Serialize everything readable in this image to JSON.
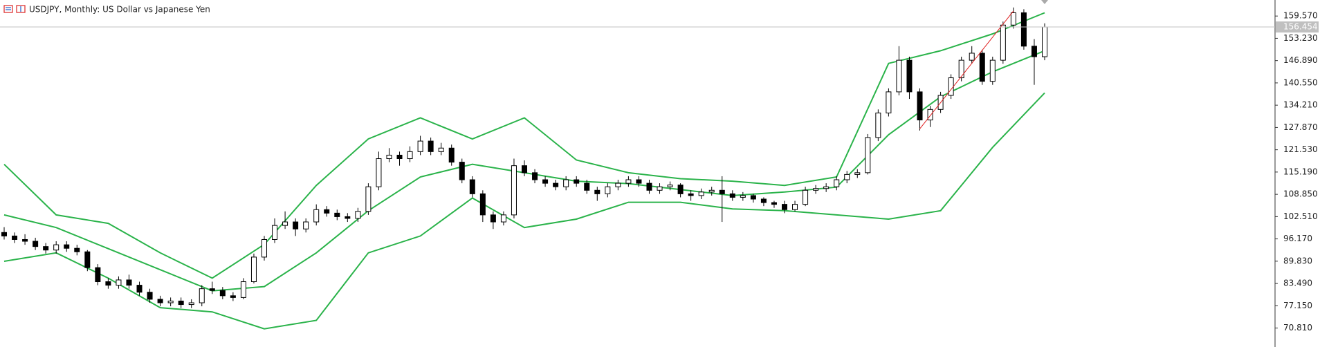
{
  "chart_data": {
    "type": "candlestick",
    "title": "USDJPY, Monthly:  US Dollar vs Japanese Yen",
    "ylim": [
      65.42,
      164.13
    ],
    "yticks": [
      {
        "value": 159.57,
        "label": "159.570"
      },
      {
        "value": 153.23,
        "label": "153.230"
      },
      {
        "value": 146.89,
        "label": "146.890"
      },
      {
        "value": 140.55,
        "label": "140.550"
      },
      {
        "value": 134.21,
        "label": "134.210"
      },
      {
        "value": 127.87,
        "label": "127.870"
      },
      {
        "value": 121.53,
        "label": "121.530"
      },
      {
        "value": 115.19,
        "label": "115.190"
      },
      {
        "value": 108.85,
        "label": "108.850"
      },
      {
        "value": 102.51,
        "label": "102.510"
      },
      {
        "value": 96.17,
        "label": "96.170"
      },
      {
        "value": 89.83,
        "label": "89.830"
      },
      {
        "value": 83.49,
        "label": "83.490"
      },
      {
        "value": 77.15,
        "label": "77.150"
      },
      {
        "value": 70.81,
        "label": "70.810"
      }
    ],
    "last_price": 156.454,
    "candles": [
      [
        98,
        99.5,
        96,
        97
      ],
      [
        97,
        98,
        95,
        96
      ],
      [
        96,
        97.5,
        94.5,
        95.5
      ],
      [
        95.5,
        96.5,
        93,
        94
      ],
      [
        94,
        95,
        92,
        93
      ],
      [
        93,
        95.5,
        92,
        94.5
      ],
      [
        94.5,
        95.5,
        92.5,
        93.5
      ],
      [
        93.5,
        94.5,
        91.5,
        92.5
      ],
      [
        92.5,
        93,
        87,
        88
      ],
      [
        88,
        89,
        83,
        84
      ],
      [
        84,
        85,
        82,
        83
      ],
      [
        83,
        85.5,
        82,
        84.5
      ],
      [
        84.5,
        86,
        82,
        83
      ],
      [
        83,
        84,
        80,
        81
      ],
      [
        81,
        82,
        78,
        79
      ],
      [
        79,
        80,
        77,
        78
      ],
      [
        78,
        79.5,
        77,
        78.5
      ],
      [
        78.5,
        79.5,
        76.5,
        77.5
      ],
      [
        77.5,
        79,
        76.5,
        78
      ],
      [
        78,
        83,
        77,
        82
      ],
      [
        82,
        84,
        80.5,
        81.5
      ],
      [
        81.5,
        82.5,
        79,
        80
      ],
      [
        80,
        81,
        78.5,
        79.5
      ],
      [
        79.5,
        85,
        79,
        84
      ],
      [
        84,
        92,
        83.5,
        91
      ],
      [
        91,
        97,
        90,
        96
      ],
      [
        96,
        102,
        95,
        100
      ],
      [
        100,
        104,
        99,
        101
      ],
      [
        101,
        102,
        97,
        99
      ],
      [
        99,
        102,
        98,
        101
      ],
      [
        101,
        106,
        100,
        104.5
      ],
      [
        104.5,
        105.5,
        102.5,
        103.5
      ],
      [
        103.5,
        104.5,
        101.5,
        102.5
      ],
      [
        102.5,
        103.5,
        101,
        102
      ],
      [
        102,
        105,
        101,
        104
      ],
      [
        104,
        112,
        103,
        111
      ],
      [
        111,
        121,
        110,
        119
      ],
      [
        119,
        122,
        118,
        120
      ],
      [
        120,
        121,
        117,
        119
      ],
      [
        119,
        122.5,
        118,
        121
      ],
      [
        121,
        125.5,
        120,
        124
      ],
      [
        124,
        125,
        120,
        121
      ],
      [
        121,
        123.5,
        120,
        122
      ],
      [
        122,
        123,
        117,
        118
      ],
      [
        118,
        119,
        112,
        113
      ],
      [
        113,
        114,
        108,
        109
      ],
      [
        109,
        110,
        101,
        103
      ],
      [
        103,
        104,
        99,
        101
      ],
      [
        101,
        104,
        100,
        103
      ],
      [
        103,
        119,
        102,
        117
      ],
      [
        117,
        118.5,
        114,
        115
      ],
      [
        115,
        116,
        112,
        113
      ],
      [
        113,
        114,
        111,
        112
      ],
      [
        112,
        113,
        110,
        111
      ],
      [
        111,
        114,
        110,
        113
      ],
      [
        113,
        114,
        111,
        112
      ],
      [
        112,
        113,
        109,
        110
      ],
      [
        110,
        111,
        107,
        109
      ],
      [
        109,
        112,
        108,
        111
      ],
      [
        111,
        113,
        110,
        112
      ],
      [
        112,
        114,
        111,
        113
      ],
      [
        113,
        114,
        111,
        112
      ],
      [
        112,
        113,
        109,
        110
      ],
      [
        110,
        112,
        109,
        111
      ],
      [
        111,
        112.5,
        110,
        111.5
      ],
      [
        111.5,
        112,
        108,
        109
      ],
      [
        109,
        110,
        107,
        108.5
      ],
      [
        108.5,
        110.5,
        107.5,
        109.5
      ],
      [
        109.5,
        111,
        108.5,
        110
      ],
      [
        110,
        114,
        101,
        109
      ],
      [
        109,
        110,
        107,
        108
      ],
      [
        108,
        109.5,
        107,
        108.5
      ],
      [
        108.5,
        109,
        106.5,
        107.5
      ],
      [
        107.5,
        108,
        105.5,
        106.5
      ],
      [
        106.5,
        107,
        105,
        106
      ],
      [
        106,
        107,
        103.5,
        104.5
      ],
      [
        104.5,
        107,
        104,
        106
      ],
      [
        106,
        111,
        105.5,
        110
      ],
      [
        110,
        111.5,
        109,
        110.5
      ],
      [
        110.5,
        112,
        109.5,
        111
      ],
      [
        111,
        114,
        110,
        113
      ],
      [
        113,
        115.5,
        112,
        114.5
      ],
      [
        114.5,
        116,
        113.5,
        115
      ],
      [
        115,
        126,
        114.5,
        125
      ],
      [
        125,
        133,
        124,
        132
      ],
      [
        132,
        139,
        131,
        138
      ],
      [
        138,
        151,
        137,
        147
      ],
      [
        147,
        148,
        136,
        138
      ],
      [
        138,
        139,
        127,
        130
      ],
      [
        130,
        134,
        128,
        133
      ],
      [
        133,
        138,
        132,
        137
      ],
      [
        137,
        143,
        136,
        142
      ],
      [
        142,
        148,
        141,
        147
      ],
      [
        147,
        151,
        146,
        149
      ],
      [
        149,
        150,
        140,
        141
      ],
      [
        141,
        148,
        140,
        147
      ],
      [
        147,
        158,
        146,
        157
      ],
      [
        157,
        162,
        156,
        160.5
      ],
      [
        160.5,
        161.5,
        150,
        151
      ],
      [
        151,
        153,
        140,
        148
      ],
      [
        148,
        157.5,
        147,
        156.454
      ]
    ],
    "bands": {
      "color": "#2ab34a",
      "x": [
        0,
        5,
        10,
        15,
        20,
        25,
        30,
        35,
        40,
        45,
        50,
        55,
        60,
        65,
        70,
        75,
        80,
        85,
        90,
        95,
        100
      ],
      "series": [
        {
          "values": [
            117.4,
            103,
            100.6,
            92.2,
            85,
            94.6,
            111.4,
            124.6,
            130.6,
            124.6,
            130.6,
            118.6,
            115,
            113.3,
            112.6,
            111.4,
            113.8,
            146.1,
            149.7,
            154.5,
            160.5
          ]
        },
        {
          "values": [
            103,
            99.4,
            93.4,
            87.4,
            81.4,
            82.6,
            92.2,
            104.2,
            113.8,
            117.4,
            115,
            112.6,
            111.9,
            110.2,
            108.5,
            109.5,
            110.9,
            125.8,
            136.6,
            143.7,
            149.7
          ]
        },
        {
          "values": [
            89.8,
            92.2,
            85,
            76.6,
            75.4,
            70.6,
            73,
            92.2,
            97,
            107.8,
            99.4,
            101.8,
            106.6,
            106.6,
            104.7,
            104.2,
            103,
            101.8,
            104.2,
            122.2,
            137.7
          ]
        }
      ]
    },
    "trendline": {
      "color": "#e02020",
      "x": [
        88,
        97
      ],
      "y": [
        127.5,
        161
      ]
    }
  }
}
